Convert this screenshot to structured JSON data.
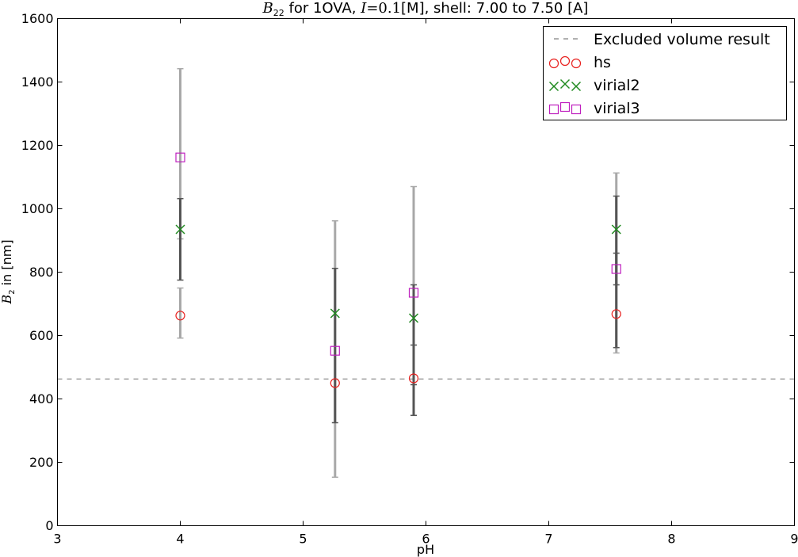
{
  "chart_data": {
    "type": "scatter",
    "title": {
      "prefix_math": "B",
      "prefix_sub": "22",
      "part1": " for 1OVA, ",
      "ionic_math": "I",
      "ionic_value": "=0.1",
      "part2": "[M], shell: 7.00 to 7.50 [A]"
    },
    "xlabel": "pH",
    "ylabel": {
      "math": "B",
      "sub": "2",
      "text": " in [nm]"
    },
    "xlim": [
      3,
      9
    ],
    "ylim": [
      0,
      1600
    ],
    "xticks": [
      3,
      4,
      5,
      6,
      7,
      8,
      9
    ],
    "yticks": [
      0,
      200,
      400,
      600,
      800,
      1000,
      1200,
      1400,
      1600
    ],
    "grid": false,
    "legend_position": "top-right",
    "reference_line": {
      "name": "Excluded volume result",
      "y": 463,
      "style": "dashed",
      "color": "#808080"
    },
    "series": [
      {
        "name": "hs",
        "marker": "circle",
        "color": "#e8201e",
        "x": [
          4.0,
          5.26,
          5.9,
          7.55
        ],
        "y": [
          663,
          450,
          465,
          668
        ]
      },
      {
        "name": "virial2",
        "marker": "x",
        "color": "#1f8a1f",
        "x": [
          4.0,
          5.26,
          5.9,
          7.55
        ],
        "y": [
          935,
          670,
          655,
          935
        ]
      },
      {
        "name": "virial3",
        "marker": "square",
        "color": "#bf1fbf",
        "x": [
          4.0,
          5.26,
          5.9,
          7.55
        ],
        "y": [
          1162,
          552,
          735,
          810
        ]
      }
    ],
    "error_bars": [
      {
        "x": 4.0,
        "low": 775,
        "high": 1032,
        "shade": "dark"
      },
      {
        "x": 4.0,
        "low": 592,
        "high": 750,
        "shade": "light"
      },
      {
        "x": 4.0,
        "low": 905,
        "high": 1442,
        "shade": "light"
      },
      {
        "x": 5.26,
        "low": 325,
        "high": 812,
        "shade": "dark"
      },
      {
        "x": 5.26,
        "low": 153,
        "high": 962,
        "shade": "light"
      },
      {
        "x": 5.9,
        "low": 348,
        "high": 570,
        "shade": "dark"
      },
      {
        "x": 5.9,
        "low": 445,
        "high": 760,
        "shade": "dark"
      },
      {
        "x": 5.9,
        "low": 348,
        "high": 1070,
        "shade": "light"
      },
      {
        "x": 7.55,
        "low": 562,
        "high": 1040,
        "shade": "dark"
      },
      {
        "x": 7.55,
        "low": 545,
        "high": 1113,
        "shade": "light"
      },
      {
        "x": 7.55,
        "low": 760,
        "high": 860,
        "shade": "dark"
      }
    ]
  }
}
